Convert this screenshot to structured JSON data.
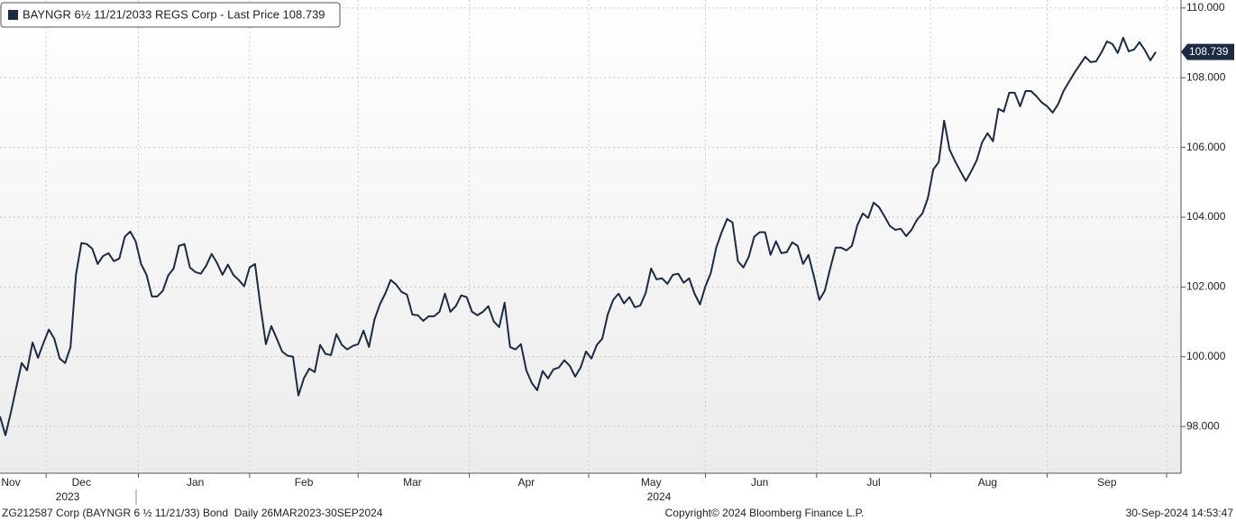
{
  "chart_data": {
    "type": "line",
    "categories": [
      null,
      null,
      "Nov",
      null,
      null,
      null,
      null,
      null,
      null,
      null,
      null,
      null,
      null,
      null,
      null,
      "Dec",
      null,
      null,
      null,
      null,
      null,
      null,
      null,
      null,
      null,
      null,
      null,
      null,
      null,
      null,
      null,
      null,
      null,
      null,
      null,
      null,
      "Jan",
      null,
      null,
      null,
      null,
      null,
      null,
      null,
      null,
      null,
      null,
      null,
      null,
      null,
      null,
      null,
      null,
      null,
      null,
      null,
      "Feb",
      null,
      null,
      null,
      null,
      null,
      null,
      null,
      null,
      null,
      null,
      null,
      null,
      null,
      null,
      null,
      null,
      null,
      null,
      null,
      "Mar",
      null,
      null,
      null,
      null,
      null,
      null,
      null,
      null,
      null,
      null,
      null,
      null,
      null,
      null,
      null,
      null,
      null,
      null,
      null,
      null,
      "Apr",
      null,
      null,
      null,
      null,
      null,
      null,
      null,
      null,
      null,
      null,
      null,
      null,
      null,
      null,
      null,
      null,
      null,
      null,
      null,
      null,
      null,
      null,
      "May",
      null,
      null,
      null,
      null,
      null,
      null,
      null,
      null,
      null,
      null,
      null,
      null,
      null,
      null,
      null,
      null,
      null,
      null,
      null,
      "Jun",
      null,
      null,
      null,
      null,
      null,
      null,
      null,
      null,
      null,
      null,
      null,
      null,
      null,
      null,
      null,
      null,
      null,
      null,
      null,
      null,
      "Jul",
      null,
      null,
      null,
      null,
      null,
      null,
      null,
      null,
      null,
      null,
      null,
      null,
      null,
      null,
      null,
      null,
      null,
      null,
      null,
      null,
      "Aug",
      null,
      null,
      null,
      null,
      null,
      null,
      null,
      null,
      null,
      null,
      null,
      null,
      null,
      null,
      null,
      null,
      null,
      null,
      null,
      null,
      null,
      "Sep",
      null,
      null,
      null,
      null,
      null,
      null,
      null,
      null,
      null
    ],
    "years": [
      "2023",
      "2024"
    ],
    "series": [
      {
        "name": "BAYNGR 6½ 11/21/2033 REGS Corp - Last Price 108.739",
        "color": "#1b2b44",
        "values": [
          98.29,
          97.75,
          98.4,
          99.12,
          99.82,
          99.61,
          100.41,
          99.97,
          100.39,
          100.78,
          100.52,
          99.95,
          99.82,
          100.28,
          102.35,
          103.26,
          103.23,
          103.1,
          102.66,
          102.89,
          102.97,
          102.74,
          102.82,
          103.44,
          103.59,
          103.31,
          102.66,
          102.35,
          101.73,
          101.73,
          101.89,
          102.33,
          102.53,
          103.18,
          103.23,
          102.56,
          102.43,
          102.38,
          102.61,
          102.95,
          102.69,
          102.35,
          102.64,
          102.35,
          102.2,
          102.02,
          102.56,
          102.66,
          101.45,
          100.36,
          100.88,
          100.52,
          100.15,
          100.03,
          100.0,
          98.89,
          99.38,
          99.66,
          99.56,
          100.34,
          100.08,
          100.05,
          100.65,
          100.34,
          100.21,
          100.31,
          100.36,
          100.75,
          100.28,
          101.06,
          101.5,
          101.81,
          102.2,
          102.07,
          101.86,
          101.78,
          101.21,
          101.19,
          101.03,
          101.16,
          101.16,
          101.29,
          101.81,
          101.29,
          101.45,
          101.76,
          101.71,
          101.29,
          101.19,
          101.29,
          101.45,
          101.01,
          100.85,
          101.55,
          100.28,
          100.21,
          100.36,
          99.61,
          99.25,
          99.04,
          99.59,
          99.38,
          99.64,
          99.69,
          99.9,
          99.74,
          99.43,
          99.69,
          100.15,
          99.95,
          100.34,
          100.52,
          101.21,
          101.63,
          101.81,
          101.53,
          101.71,
          101.42,
          101.47,
          101.83,
          102.53,
          102.22,
          102.25,
          102.09,
          102.35,
          102.38,
          102.12,
          102.25,
          101.81,
          101.5,
          102.02,
          102.4,
          103.13,
          103.57,
          103.95,
          103.85,
          102.74,
          102.56,
          102.87,
          103.44,
          103.57,
          103.57,
          102.92,
          103.31,
          102.97,
          103.0,
          103.28,
          103.18,
          102.66,
          102.92,
          102.3,
          101.63,
          101.89,
          102.53,
          103.13,
          103.13,
          103.05,
          103.18,
          103.77,
          104.11,
          103.98,
          104.42,
          104.29,
          104.03,
          103.75,
          103.64,
          103.67,
          103.46,
          103.64,
          103.93,
          104.11,
          104.55,
          105.37,
          105.58,
          106.77,
          105.94,
          105.61,
          105.32,
          105.04,
          105.32,
          105.63,
          106.15,
          106.41,
          106.18,
          107.11,
          107.03,
          107.57,
          107.57,
          107.18,
          107.62,
          107.62,
          107.47,
          107.29,
          107.18,
          107.0,
          107.24,
          107.62,
          107.88,
          108.14,
          108.37,
          108.6,
          108.45,
          108.47,
          108.73,
          109.04,
          108.97,
          108.71,
          109.15,
          108.76,
          108.81,
          109.02,
          108.79,
          108.5,
          108.739
        ]
      }
    ],
    "ylim": [
      96.66,
      110.23
    ],
    "yticks": [
      {
        "value": 98,
        "label": "98.000"
      },
      {
        "value": 100,
        "label": "100.000"
      },
      {
        "value": 102,
        "label": "102.000"
      },
      {
        "value": 104,
        "label": "104.000"
      },
      {
        "value": 106,
        "label": "106.000"
      },
      {
        "value": 108,
        "label": "108.000"
      },
      {
        "value": 110,
        "label": "110.000"
      }
    ],
    "grid": true,
    "legend": "upper left",
    "footer": {
      "left": "ZG212587 Corp (BAYNGR 6 ½ 11/21/33) Bond  Daily 26MAR2023-30SEP2024",
      "center": "Copyright© 2024 Bloomberg Finance L.P.",
      "right": "30-Sep-2024 14:53:47"
    }
  }
}
